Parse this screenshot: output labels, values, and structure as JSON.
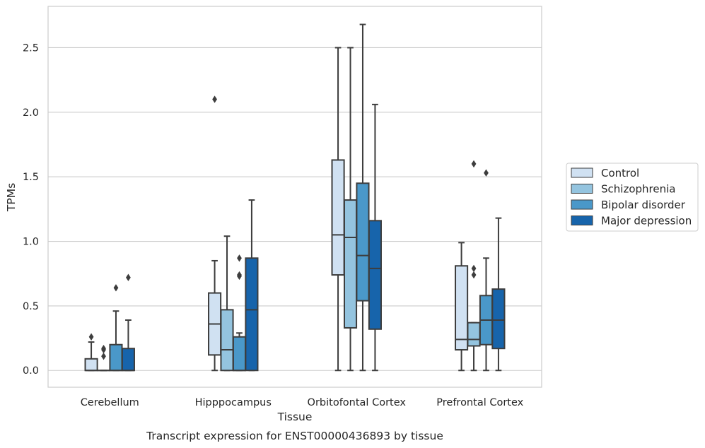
{
  "chart_data": {
    "type": "box",
    "xlabel": "Tissue",
    "ylabel": "TPMs",
    "caption": "Transcript expression for ENST00000436893 by tissue",
    "ylim": [
      -0.13,
      2.82
    ],
    "yticks": [
      0.0,
      0.5,
      1.0,
      1.5,
      2.0,
      2.5
    ],
    "ytick_labels": [
      "0.0",
      "0.5",
      "1.0",
      "1.5",
      "2.0",
      "2.5"
    ],
    "grid": "horizontal",
    "legend_position": "right",
    "categories": [
      "Cerebellum",
      "Hipppocampus",
      "Orbitofontal Cortex",
      "Prefrontal Cortex"
    ],
    "series": [
      {
        "name": "Control",
        "color": "#d0e1f2",
        "boxes": [
          {
            "min": 0.0,
            "q1": 0.0,
            "median": 0.0,
            "q3": 0.09,
            "max": 0.22,
            "outliers": [
              0.26
            ]
          },
          {
            "min": 0.0,
            "q1": 0.12,
            "median": 0.36,
            "q3": 0.6,
            "max": 0.85,
            "outliers": [
              2.1
            ]
          },
          {
            "min": 0.0,
            "q1": 0.74,
            "median": 1.05,
            "q3": 1.63,
            "max": 2.5,
            "outliers": []
          },
          {
            "min": 0.0,
            "q1": 0.16,
            "median": 0.24,
            "q3": 0.81,
            "max": 0.99,
            "outliers": []
          }
        ]
      },
      {
        "name": "Schizophrenia",
        "color": "#94c4df",
        "boxes": [
          {
            "min": 0.0,
            "q1": 0.0,
            "median": 0.0,
            "q3": 0.0,
            "max": 0.0,
            "outliers": [
              0.11,
              0.16,
              0.17
            ]
          },
          {
            "min": 0.0,
            "q1": 0.0,
            "median": 0.16,
            "q3": 0.47,
            "max": 1.04,
            "outliers": []
          },
          {
            "min": 0.0,
            "q1": 0.33,
            "median": 1.03,
            "q3": 1.32,
            "max": 2.5,
            "outliers": []
          },
          {
            "min": 0.0,
            "q1": 0.19,
            "median": 0.24,
            "q3": 0.37,
            "max": 0.37,
            "outliers": [
              0.74,
              0.79,
              1.6
            ]
          }
        ]
      },
      {
        "name": "Bipolar disorder",
        "color": "#4a98c9",
        "boxes": [
          {
            "min": 0.0,
            "q1": 0.0,
            "median": 0.0,
            "q3": 0.2,
            "max": 0.46,
            "outliers": [
              0.64
            ]
          },
          {
            "min": 0.0,
            "q1": 0.0,
            "median": 0.0,
            "q3": 0.26,
            "max": 0.29,
            "outliers": [
              0.73,
              0.74,
              0.87
            ]
          },
          {
            "min": 0.0,
            "q1": 0.54,
            "median": 0.89,
            "q3": 1.45,
            "max": 2.68,
            "outliers": []
          },
          {
            "min": 0.0,
            "q1": 0.2,
            "median": 0.39,
            "q3": 0.58,
            "max": 0.87,
            "outliers": [
              1.53
            ]
          }
        ]
      },
      {
        "name": "Major depression",
        "color": "#1764ab",
        "boxes": [
          {
            "min": 0.0,
            "q1": 0.0,
            "median": 0.0,
            "q3": 0.17,
            "max": 0.39,
            "outliers": [
              0.72
            ]
          },
          {
            "min": 0.0,
            "q1": 0.0,
            "median": 0.47,
            "q3": 0.87,
            "max": 1.32,
            "outliers": []
          },
          {
            "min": 0.0,
            "q1": 0.32,
            "median": 0.79,
            "q3": 1.16,
            "max": 2.06,
            "outliers": []
          },
          {
            "min": 0.0,
            "q1": 0.17,
            "median": 0.39,
            "q3": 0.63,
            "max": 1.18,
            "outliers": []
          }
        ]
      }
    ]
  },
  "colors": {
    "grid": "#cccccc",
    "frame": "#cccccc",
    "line": "#3d3d3d",
    "outlier": "#3d3d3d"
  }
}
